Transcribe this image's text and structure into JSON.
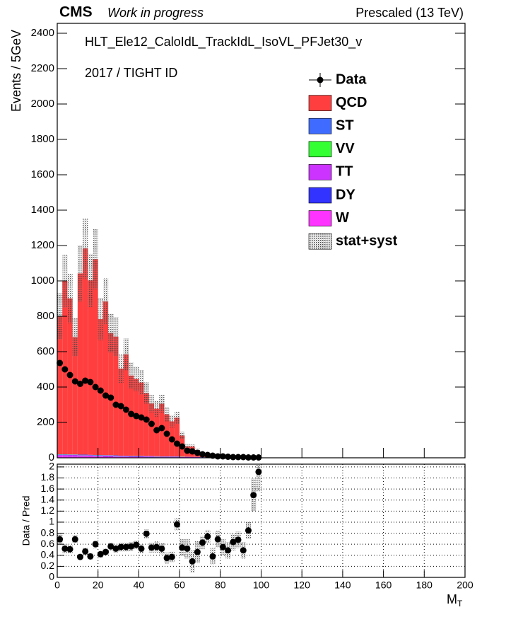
{
  "chart_data": {
    "type": "histogram",
    "experiment": "CMS",
    "status": "Work in progress",
    "energy_label": "Prescaled (13 TeV)",
    "trigger": "HLT_Ele12_CaloIdL_TrackIdL_IsoVL_PFJet30_v",
    "selection": "2017 / TIGHT ID",
    "ylabel": "Events / 5GeV",
    "xlabel": "M",
    "xlabel_subscript": "T",
    "xlim": [
      0,
      200
    ],
    "xticks": [
      0,
      20,
      40,
      60,
      80,
      100,
      120,
      140,
      160,
      180,
      200
    ],
    "ylim": [
      0,
      2456
    ],
    "yticks": [
      0,
      200,
      400,
      600,
      800,
      1000,
      1200,
      1400,
      1600,
      1800,
      2000,
      2200,
      2400
    ],
    "bins": [
      0,
      2.5,
      5,
      7.5,
      10,
      12.5,
      15,
      17.5,
      20,
      22.5,
      25,
      27.5,
      30,
      32.5,
      35,
      37.5,
      40,
      42.5,
      45,
      47.5,
      50,
      52.5,
      55,
      57.5,
      60,
      62.5,
      65,
      67.5,
      70,
      72.5,
      75,
      77.5,
      80,
      82.5,
      85,
      87.5,
      90,
      92.5,
      95,
      97.5,
      100
    ],
    "data": {
      "name": "Data",
      "color": "#000000",
      "values": [
        536,
        500,
        468,
        432,
        418,
        436,
        428,
        400,
        380,
        352,
        340,
        300,
        292,
        272,
        248,
        236,
        228,
        216,
        192,
        156,
        168,
        136,
        104,
        80,
        64,
        40,
        36,
        28,
        20,
        16,
        12,
        8,
        8,
        6,
        4,
        4,
        4,
        2,
        2,
        2
      ]
    },
    "series": [
      {
        "name": "QCD",
        "color": "#ff3f3f",
        "values": [
          780,
          980,
          882,
          663,
          1024,
          1166,
          986,
          1107,
          768,
          869,
          690,
          671,
          492,
          573,
          454,
          435,
          415,
          356,
          297,
          269,
          298,
          238,
          198,
          218,
          119,
          59,
          59,
          39,
          23,
          19,
          12,
          10,
          8,
          6,
          4,
          3,
          2,
          1,
          1,
          1
        ]
      },
      {
        "name": "ST",
        "color": "#3f6cff",
        "values": [
          2,
          2,
          2,
          2,
          2,
          2,
          2,
          2,
          2,
          2,
          2,
          2,
          1,
          1,
          1,
          1,
          1,
          1,
          1,
          1,
          1,
          1,
          1,
          1,
          1,
          1,
          1,
          1,
          1,
          1,
          0,
          0,
          0,
          0,
          0,
          0,
          0,
          0,
          0,
          0
        ]
      },
      {
        "name": "VV",
        "color": "#33ff33",
        "values": [
          1,
          1,
          1,
          1,
          1,
          1,
          1,
          1,
          1,
          1,
          1,
          1,
          1,
          1,
          1,
          1,
          1,
          1,
          1,
          1,
          1,
          1,
          1,
          1,
          1,
          0,
          0,
          0,
          0,
          0,
          0,
          0,
          0,
          0,
          0,
          0,
          0,
          0,
          0,
          0
        ]
      },
      {
        "name": "TT",
        "color": "#cc33ff",
        "values": [
          4,
          4,
          4,
          4,
          4,
          4,
          4,
          4,
          4,
          4,
          4,
          4,
          3,
          3,
          3,
          3,
          3,
          3,
          3,
          3,
          3,
          3,
          3,
          3,
          3,
          3,
          2,
          2,
          1,
          1,
          0,
          0,
          0,
          0,
          0,
          0,
          0,
          0,
          0,
          0
        ]
      },
      {
        "name": "DY",
        "color": "#3333ff",
        "values": [
          3,
          3,
          3,
          3,
          3,
          3,
          2,
          2,
          2,
          2,
          2,
          2,
          2,
          2,
          2,
          2,
          2,
          2,
          2,
          1,
          1,
          1,
          1,
          1,
          1,
          1,
          1,
          1,
          1,
          0,
          0,
          0,
          0,
          0,
          0,
          0,
          0,
          0,
          0,
          0
        ]
      },
      {
        "name": "W",
        "color": "#ff33ff",
        "values": [
          10,
          10,
          9,
          9,
          8,
          8,
          8,
          7,
          7,
          6,
          6,
          5,
          5,
          5,
          4,
          4,
          4,
          3,
          3,
          3,
          2,
          2,
          2,
          2,
          1,
          1,
          1,
          1,
          1,
          1,
          0,
          0,
          0,
          0,
          0,
          0,
          0,
          0,
          0,
          0
        ]
      }
    ],
    "uncertainty": {
      "name": "stat+syst",
      "color": "#888888",
      "values": [
        130,
        150,
        140,
        110,
        160,
        170,
        150,
        170,
        120,
        130,
        110,
        110,
        80,
        90,
        75,
        70,
        70,
        60,
        50,
        45,
        50,
        40,
        35,
        35,
        22,
        12,
        12,
        8,
        5,
        4,
        3,
        3,
        2,
        2,
        1,
        1,
        1,
        1,
        1,
        1
      ]
    },
    "ratio": {
      "ylabel": "Data / Pred",
      "ylim": [
        0,
        2.05
      ],
      "yticks": [
        0,
        0.2,
        0.4,
        0.6,
        0.8,
        1,
        1.2,
        1.4,
        1.6,
        1.8,
        2
      ],
      "values": [
        0.69,
        0.52,
        0.51,
        0.69,
        0.37,
        0.47,
        0.38,
        0.6,
        0.42,
        0.46,
        0.56,
        0.52,
        0.55,
        0.55,
        0.56,
        0.59,
        0.52,
        0.79,
        0.54,
        0.55,
        0.52,
        0.35,
        0.37,
        0.96,
        0.54,
        0.52,
        0.29,
        0.46,
        0.63,
        0.74,
        0.38,
        0.69,
        0.55,
        0.49,
        0.64,
        0.68,
        0.49,
        0.85,
        1.49,
        1.91
      ],
      "errors": [
        0.1,
        0.08,
        0.07,
        0.07,
        0.06,
        0.06,
        0.06,
        0.07,
        0.06,
        0.06,
        0.07,
        0.07,
        0.08,
        0.08,
        0.08,
        0.08,
        0.08,
        0.08,
        0.09,
        0.1,
        0.1,
        0.1,
        0.1,
        0.11,
        0.15,
        0.18,
        0.2,
        0.2,
        0.12,
        0.12,
        0.15,
        0.15,
        0.15,
        0.15,
        0.15,
        0.15,
        0.15,
        0.15,
        0.3,
        0.35
      ]
    }
  }
}
